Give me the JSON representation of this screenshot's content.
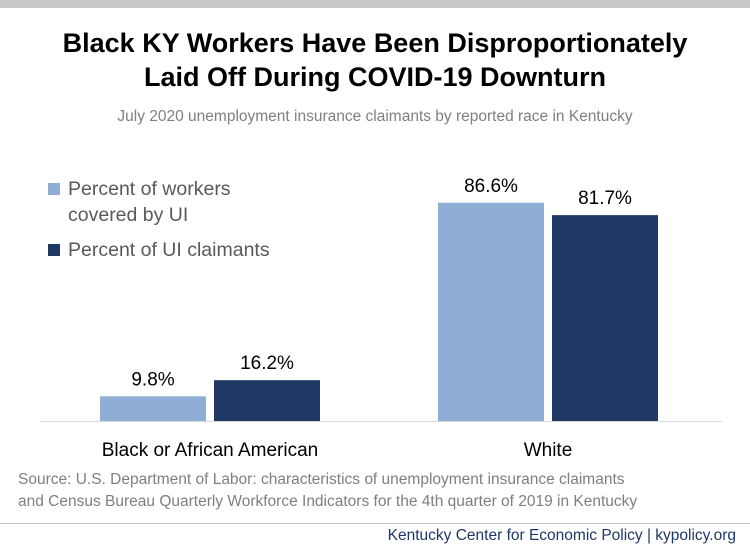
{
  "title_line1": "Black KY Workers Have Been Disproportionately",
  "title_line2": "Laid Off During COVID-19 Downturn",
  "subtitle": "July 2020 unemployment insurance claimants by reported race in Kentucky",
  "source_line1": "Source: U.S. Department of Labor: characteristics of unemployment insurance claimants",
  "source_line2": "and Census Bureau Quarterly Workforce Indicators for the 4th quarter of 2019 in Kentucky",
  "footer": "Kentucky Center for Economic Policy | kypolicy.org",
  "colors": {
    "covered": "#8eaed5",
    "claimants": "#1f3864"
  },
  "chart_data": {
    "type": "bar",
    "title": "Black KY Workers Have Been Disproportionately Laid Off During COVID-19 Downturn",
    "subtitle": "July 2020 unemployment insurance claimants by reported race in Kentucky",
    "categories": [
      "Black or African American",
      "White"
    ],
    "series": [
      {
        "name": "Percent of workers covered by UI",
        "values": [
          9.8,
          86.6
        ],
        "labels": [
          "9.8%",
          "86.6%"
        ]
      },
      {
        "name": "Percent of UI claimants",
        "values": [
          16.2,
          81.7
        ],
        "labels": [
          "16.2%",
          "81.7%"
        ]
      }
    ],
    "legend": {
      "labels": [
        "Percent of workers covered by UI",
        "Percent of UI claimants"
      ],
      "position": "top-left"
    },
    "ylim": [
      0,
      100
    ],
    "grid": false,
    "xlabel": "",
    "ylabel": ""
  }
}
